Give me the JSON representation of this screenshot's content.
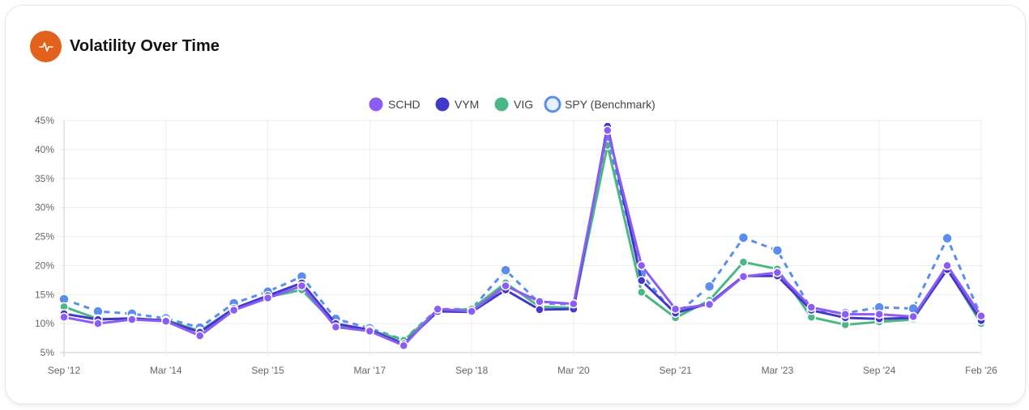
{
  "card": {
    "title": "Volatility Over Time",
    "icon": "activity-pulse-icon",
    "icon_color": "#e2611d"
  },
  "chart_data": {
    "type": "line",
    "title": "",
    "xlabel": "",
    "ylabel": "",
    "ylim": [
      5,
      45
    ],
    "y_ticks": [
      5,
      10,
      15,
      20,
      25,
      30,
      35,
      40,
      45
    ],
    "y_tick_format": "%",
    "grid": true,
    "legend_position": "top-center",
    "x": [
      "Sep '12",
      "Mar '13",
      "Sep '13",
      "Mar '14",
      "Sep '14",
      "Mar '15",
      "Sep '15",
      "Mar '16",
      "Sep '16",
      "Mar '17",
      "Sep '17",
      "Mar '18",
      "Sep '18",
      "Mar '19",
      "Sep '19",
      "Mar '20",
      "Sep '20",
      "Mar '21",
      "Sep '21",
      "Mar '22",
      "Sep '22",
      "Mar '23",
      "Sep '23",
      "Mar '24",
      "Sep '24",
      "Mar '25",
      "Sep '25",
      "Feb '26"
    ],
    "x_tick_labels": [
      "Sep '12",
      "Mar '14",
      "Sep '15",
      "Mar '17",
      "Sep '18",
      "Mar '20",
      "Sep '21",
      "Mar '23",
      "Sep '24",
      "Feb '26"
    ],
    "series": [
      {
        "name": "SPY (Benchmark)",
        "color": "#5b8def",
        "dashed": true,
        "values": [
          14.2,
          12.1,
          11.7,
          10.9,
          9.3,
          13.5,
          15.5,
          18.1,
          10.8,
          9.2,
          7.2,
          12.5,
          12.5,
          19.2,
          13.5,
          13.3,
          41.5,
          18.5,
          11.5,
          16.4,
          24.8,
          22.6,
          12.4,
          11.8,
          12.8,
          12.6,
          24.7,
          11.2
        ]
      },
      {
        "name": "VIG",
        "color": "#4ab884",
        "dashed": false,
        "values": [
          12.9,
          10.8,
          10.8,
          10.6,
          8.7,
          12.6,
          14.6,
          15.8,
          9.8,
          8.9,
          7.1,
          12.2,
          12.5,
          17.0,
          12.9,
          12.7,
          40.7,
          15.4,
          11.0,
          14.0,
          20.6,
          19.4,
          11.1,
          9.8,
          10.3,
          10.7,
          19.5,
          10.0
        ]
      },
      {
        "name": "VYM",
        "color": "#4338ca",
        "dashed": false,
        "values": [
          11.7,
          10.7,
          10.9,
          10.5,
          8.5,
          12.6,
          14.8,
          17.0,
          10.0,
          8.9,
          6.5,
          12.1,
          12.0,
          15.8,
          12.4,
          12.5,
          44.0,
          17.4,
          11.8,
          13.5,
          18.2,
          18.2,
          12.3,
          11.0,
          10.8,
          11.0,
          19.3,
          10.5
        ]
      },
      {
        "name": "SCHD",
        "color": "#8b5cf6",
        "dashed": false,
        "values": [
          11.1,
          10.0,
          10.7,
          10.4,
          7.9,
          12.3,
          14.4,
          16.5,
          9.4,
          8.7,
          6.2,
          12.5,
          12.1,
          16.5,
          13.8,
          13.4,
          43.3,
          20.0,
          12.5,
          13.3,
          18.1,
          18.8,
          12.8,
          11.6,
          11.6,
          11.2,
          20.0,
          11.3
        ]
      }
    ],
    "legend": [
      "SCHD",
      "VYM",
      "VIG",
      "SPY (Benchmark)"
    ]
  }
}
